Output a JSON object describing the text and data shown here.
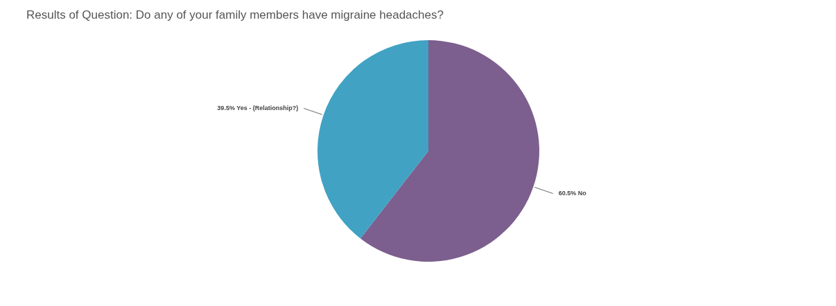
{
  "chart_data": {
    "type": "pie",
    "title": "Results of Question: Do any of your family members have migraine headaches?",
    "categories": [
      "No",
      "Yes - (Relationship?)"
    ],
    "values": [
      60.5,
      39.5
    ],
    "colors": [
      "#7c5f8e",
      "#41a2c3"
    ],
    "value_labels": [
      "60.5%",
      "39.5%"
    ],
    "legend": false
  }
}
